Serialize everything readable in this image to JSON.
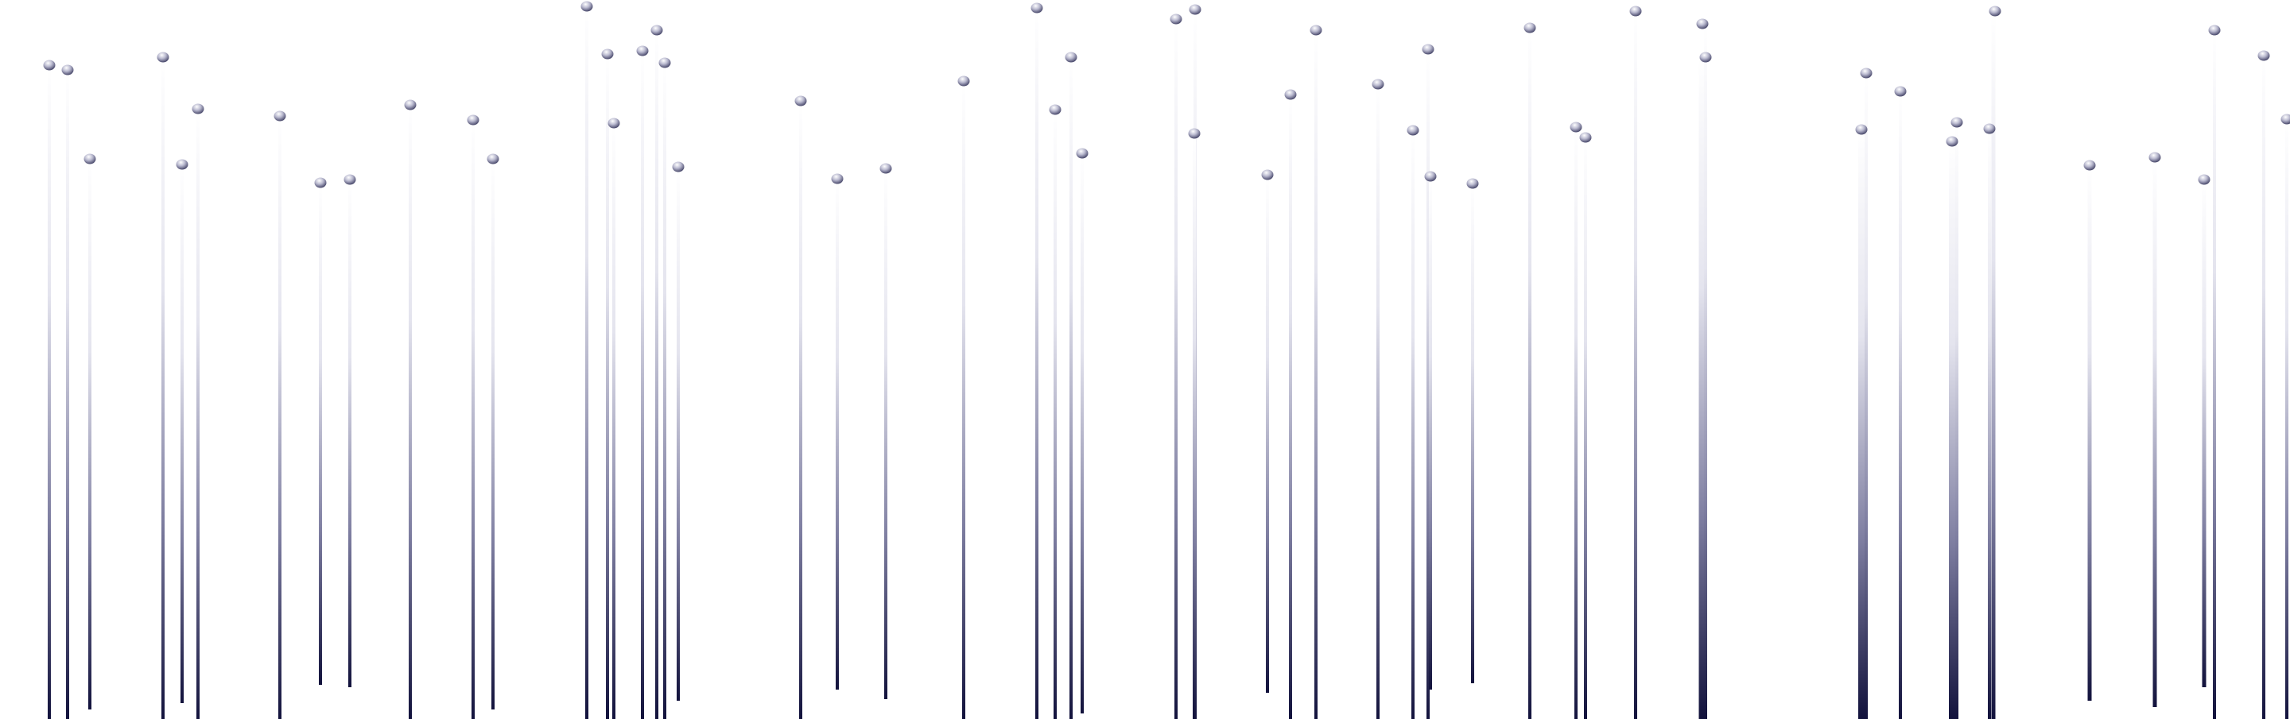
{
  "colors": {
    "background": "#ffffff",
    "stem_dark": "#12123c",
    "stem_light": "#ffffff",
    "bulb_highlight": "#ffffff",
    "bulb_mid": "#b9b9cf",
    "bulb_shadow": "#3a3a5e"
  },
  "graphic": {
    "description_icon": "hanging-bulb-lines-icon"
  }
}
